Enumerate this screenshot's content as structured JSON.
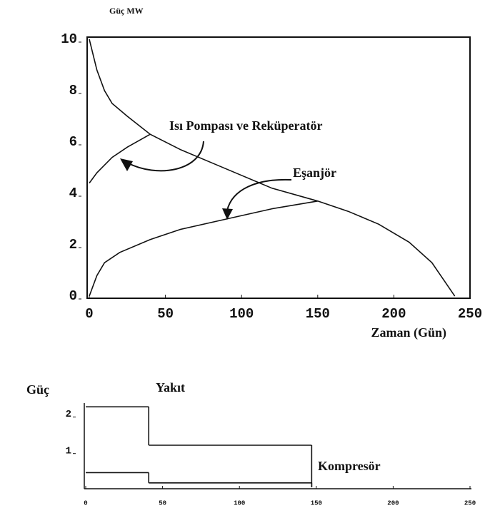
{
  "chart_data": [
    {
      "type": "line",
      "y_label": "Güç MW",
      "x_label": "Zaman (Gün)",
      "annotations": [
        "Isı Pompası ve Reküperatör",
        "Eşanjör"
      ],
      "xlim": [
        0,
        250
      ],
      "ylim": [
        0,
        10
      ],
      "xticks": [
        0,
        50,
        100,
        150,
        200,
        250
      ],
      "yticks": [
        0,
        2,
        4,
        6,
        8,
        10
      ],
      "series": [
        {
          "color": "#111111",
          "x": [
            0,
            5,
            10,
            15,
            25,
            40,
            60,
            80,
            100,
            120,
            150,
            170,
            190,
            210,
            225,
            240
          ],
          "values": [
            10,
            8.8,
            8,
            7.5,
            7,
            6.3,
            5.7,
            5.2,
            4.7,
            4.2,
            3.7,
            3.3,
            2.8,
            2.1,
            1.3,
            0
          ]
        },
        {
          "color": "#111111",
          "x": [
            0,
            5,
            15,
            25,
            40
          ],
          "values": [
            4.4,
            4.8,
            5.4,
            5.8,
            6.3
          ]
        },
        {
          "color": "#111111",
          "x": [
            0,
            5,
            10,
            20,
            40,
            60,
            90,
            120,
            150
          ],
          "values": [
            0,
            0.8,
            1.3,
            1.7,
            2.2,
            2.6,
            3.0,
            3.4,
            3.7
          ]
        }
      ]
    },
    {
      "type": "step",
      "y_label": "Güç",
      "xlim": [
        0,
        250
      ],
      "ylim": [
        0,
        2.3
      ],
      "xticks": [
        0,
        50,
        100,
        150,
        200,
        250
      ],
      "yticks": [
        1,
        2
      ],
      "series": [
        {
          "name": "Yakıt",
          "color": "#111111",
          "x": [
            0,
            41,
            147
          ],
          "values": [
            2.2,
            1.15,
            0
          ]
        },
        {
          "name": "Kompresör",
          "color": "#111111",
          "x": [
            0,
            41,
            147
          ],
          "values": [
            0.4,
            0.12,
            0
          ]
        }
      ]
    }
  ]
}
